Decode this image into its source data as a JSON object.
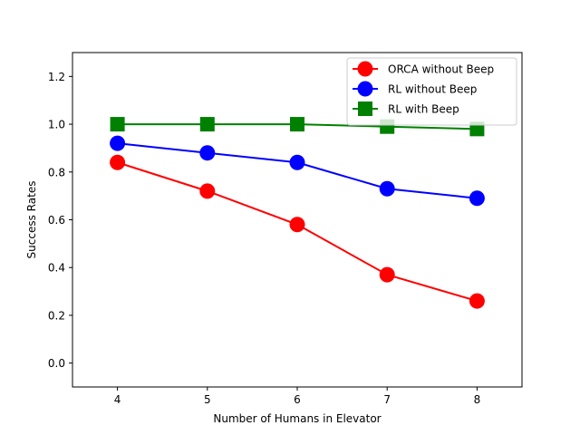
{
  "chart_data": {
    "type": "line",
    "title": "",
    "xlabel": "Number of Humans in Elevator",
    "ylabel": "Success Rates",
    "x": [
      4,
      5,
      6,
      7,
      8
    ],
    "xlim": [
      3.5,
      8.5
    ],
    "ylim": [
      -0.1,
      1.3
    ],
    "xticks": [
      "4",
      "5",
      "6",
      "7",
      "8"
    ],
    "yticks": [
      "0.0",
      "0.2",
      "0.4",
      "0.6",
      "0.8",
      "1.0",
      "1.2"
    ],
    "grid": false,
    "legend_position": "top-right",
    "series": [
      {
        "name": "ORCA without Beep",
        "values": [
          0.84,
          0.72,
          0.58,
          0.37,
          0.26
        ],
        "color": "#ff0000",
        "marker": "circle"
      },
      {
        "name": "RL without Beep",
        "values": [
          0.92,
          0.88,
          0.84,
          0.73,
          0.69
        ],
        "color": "#0000ff",
        "marker": "circle"
      },
      {
        "name": "RL with Beep",
        "values": [
          1.0,
          1.0,
          1.0,
          0.99,
          0.98
        ],
        "color": "#008000",
        "marker": "square"
      }
    ]
  }
}
